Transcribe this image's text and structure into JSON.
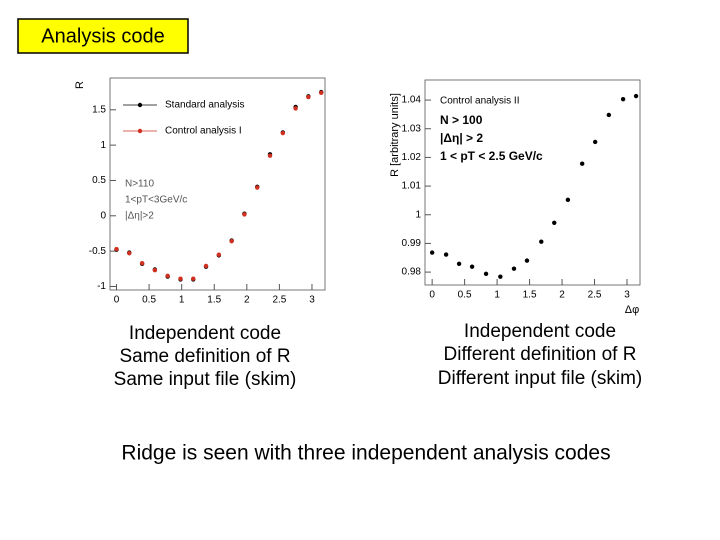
{
  "slide_title": "Analysis code",
  "chart_data": [
    {
      "type": "scatter",
      "ylabel": "R",
      "xlim": [
        -0.1,
        3.2
      ],
      "ylim": [
        -1.05,
        1.95
      ],
      "xticks": [
        0,
        0.5,
        1,
        1.5,
        2,
        2.5,
        3
      ],
      "yticks": [
        -1,
        -0.5,
        0,
        0.5,
        1,
        1.5
      ],
      "x": [
        0,
        0.196,
        0.393,
        0.589,
        0.785,
        0.982,
        1.178,
        1.374,
        1.571,
        1.767,
        1.963,
        2.16,
        2.356,
        2.553,
        2.749,
        2.945,
        3.142
      ],
      "series": [
        {
          "name": "Standard analysis",
          "color": "#000000",
          "values": [
            -0.48,
            -0.52,
            -0.68,
            -0.76,
            -0.86,
            -0.9,
            -0.9,
            -0.72,
            -0.56,
            -0.35,
            0.03,
            0.41,
            0.87,
            1.18,
            1.54,
            1.69,
            1.75
          ]
        },
        {
          "name": "Control analysis I",
          "color": "#d03020",
          "values": [
            -0.47,
            -0.53,
            -0.67,
            -0.77,
            -0.85,
            -0.89,
            -0.89,
            -0.71,
            -0.55,
            -0.36,
            0.02,
            0.4,
            0.85,
            1.17,
            1.52,
            1.68,
            1.74
          ]
        }
      ],
      "annotations": [
        "N>110",
        "1<pT<3GeV/c",
        "|Δη|>2"
      ]
    },
    {
      "type": "scatter",
      "ylabel": "R [arbitrary units]",
      "xlabel": "Δφ",
      "xlim": [
        -0.11,
        3.2
      ],
      "ylim": [
        0.9755,
        1.047
      ],
      "xticks": [
        0,
        0.5,
        1,
        1.5,
        2,
        2.5,
        3
      ],
      "yticks": [
        0.98,
        0.99,
        1,
        1.01,
        1.02,
        1.03,
        1.04
      ],
      "x": [
        0,
        0.215,
        0.415,
        0.615,
        0.83,
        1.05,
        1.26,
        1.46,
        1.68,
        1.88,
        2.09,
        2.31,
        2.51,
        2.72,
        2.94,
        3.14
      ],
      "series": [
        {
          "name": "Control analysis II",
          "color": "#000000",
          "values": [
            0.9868,
            0.9861,
            0.9829,
            0.9819,
            0.9794,
            0.9784,
            0.9812,
            0.984,
            0.9906,
            0.9972,
            1.0052,
            1.0178,
            1.0254,
            1.0348,
            1.0403,
            1.0414
          ]
        }
      ],
      "annotations": [
        "N > 100",
        "|Δη| > 2",
        "1 < pT < 2.5 GeV/c"
      ]
    }
  ],
  "captions": [
    [
      "Independent code",
      "Same definition of R",
      "Same input file (skim)"
    ],
    [
      "Independent code",
      "Different definition of R",
      "Different input file (skim)"
    ]
  ],
  "conclusion": "Ridge is seen with three independent analysis codes"
}
